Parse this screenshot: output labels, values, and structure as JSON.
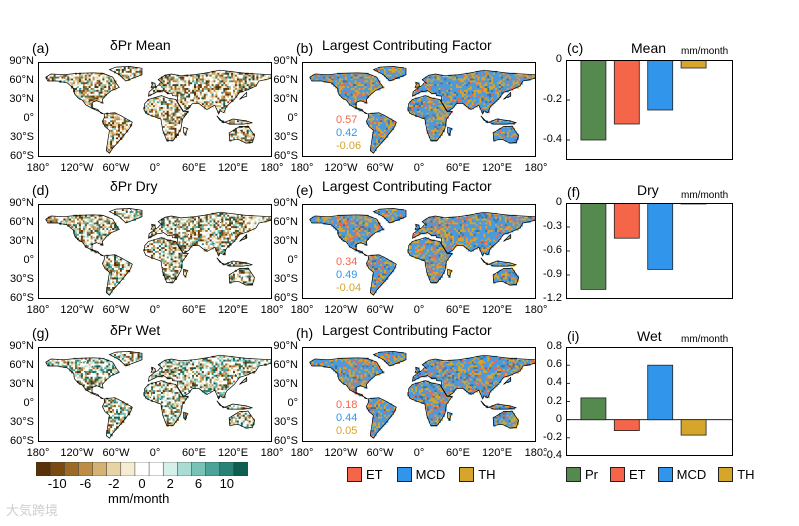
{
  "colors": {
    "pr": "#558a4f",
    "et": "#f5654a",
    "mcd": "#3196eb",
    "th": "#d6a52b",
    "ocean_bg": "#ffffff",
    "land_mcd": "#4a9ae0",
    "brown_dark": "#6b3c0c",
    "teal_dark": "#0f5e52"
  },
  "rows": [
    {
      "key": "mean",
      "left": {
        "label": "(a)",
        "title": "δPr  Mean"
      },
      "middle": {
        "label": "(b)",
        "title": "Largest Contributing Factor",
        "stats": [
          "0.57",
          "0.42",
          "-0.06"
        ]
      },
      "right": {
        "label": "(c)",
        "title": "Mean",
        "units": "mm/month"
      }
    },
    {
      "key": "dry",
      "left": {
        "label": "(d)",
        "title": "δPr  Dry"
      },
      "middle": {
        "label": "(e)",
        "title": "Largest Contributing Factor",
        "stats": [
          "0.34",
          "0.49",
          "-0.04"
        ]
      },
      "right": {
        "label": "(f)",
        "title": "Dry",
        "units": "mm/month"
      }
    },
    {
      "key": "wet",
      "left": {
        "label": "(g)",
        "title": "δPr  Wet"
      },
      "middle": {
        "label": "(h)",
        "title": "Largest Contributing Factor",
        "stats": [
          "0.18",
          "0.44",
          "0.05"
        ]
      },
      "right": {
        "label": "(i)",
        "title": "Wet",
        "units": "mm/month"
      }
    }
  ],
  "map_axes": {
    "lat_ticks": [
      "90°N",
      "60°N",
      "30°N",
      "0°",
      "30°S",
      "60°S"
    ],
    "lon_ticks": [
      "180°",
      "120°W",
      "60°W",
      "0°",
      "60°E",
      "120°E",
      "180°"
    ]
  },
  "colorbar": {
    "tick_labels": [
      "-10",
      "-6",
      "-2",
      "0",
      "2",
      "6",
      "10"
    ],
    "units": "mm/month",
    "colors": [
      "#5a3208",
      "#7a4a12",
      "#9c6a26",
      "#bd8c47",
      "#d4b274",
      "#e8d3a4",
      "#f5ecd3",
      "#ffffff",
      "#ffffff",
      "#d6efe9",
      "#a9dcd2",
      "#78c3b6",
      "#4ba497",
      "#2a8276",
      "#0f5e52"
    ]
  },
  "legend_middle": [
    "ET",
    "MCD",
    "TH"
  ],
  "legend_right": [
    "Pr",
    "ET",
    "MCD",
    "TH"
  ],
  "chart_data": [
    {
      "type": "bar",
      "title": "Mean",
      "ylabel": "mm/month",
      "categories": [
        "Pr",
        "ET",
        "MCD",
        "TH"
      ],
      "values": [
        -0.4,
        -0.32,
        -0.25,
        -0.04
      ],
      "ylim": [
        -0.5,
        0
      ],
      "yticks": [
        0,
        -0.2,
        -0.4
      ],
      "ytick_labels": [
        "0",
        "-0.2",
        "-0.4"
      ]
    },
    {
      "type": "bar",
      "title": "Dry",
      "ylabel": "mm/month",
      "categories": [
        "Pr",
        "ET",
        "MCD",
        "TH"
      ],
      "values": [
        -1.08,
        -0.44,
        -0.83,
        -0.01
      ],
      "ylim": [
        -1.2,
        0
      ],
      "yticks": [
        0,
        -0.3,
        -0.6,
        -0.9,
        -1.2
      ],
      "ytick_labels": [
        "0",
        "-0.3",
        "-0.6",
        "-0.9",
        "-1.2"
      ]
    },
    {
      "type": "bar",
      "title": "Wet",
      "ylabel": "mm/month",
      "categories": [
        "Pr",
        "ET",
        "MCD",
        "TH"
      ],
      "values": [
        0.24,
        -0.12,
        0.6,
        -0.17
      ],
      "ylim": [
        -0.4,
        0.8
      ],
      "yticks": [
        0.8,
        0.6,
        0.4,
        0.2,
        0,
        -0.2,
        -0.4
      ],
      "ytick_labels": [
        "0.8",
        "0.6",
        "0.4",
        "0.2",
        "0",
        "-0.2",
        "-0.4"
      ]
    }
  ],
  "watermark": "大気跨境"
}
